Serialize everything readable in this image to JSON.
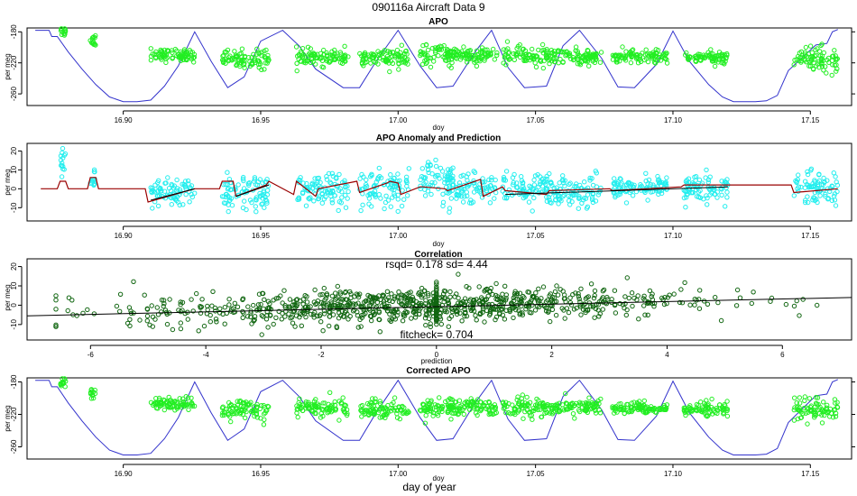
{
  "figure": {
    "title": "090116a   Aircraft Data 9",
    "bottom_label": "day of year"
  },
  "colors": {
    "apo_points": "#22ee22",
    "anomaly_points": "#22eeee",
    "corr_points": "#116611",
    "model_line": "#3333cc",
    "prediction_line": "#990000",
    "axis": "#000000"
  },
  "chart_data": [
    {
      "type": "scatter",
      "title": "APO",
      "xlabel": "doy",
      "ylabel": "per meg",
      "xlim": [
        16.865,
        17.165
      ],
      "ylim": [
        -275,
        -175
      ],
      "xticks": [
        16.9,
        16.95,
        17.0,
        17.05,
        17.1,
        17.15
      ],
      "xtick_labels": [
        "16.90",
        "16.95",
        "17.00",
        "17.05",
        "17.10",
        "17.15"
      ],
      "yticks": [
        -180,
        -220,
        -260
      ],
      "ytick_labels": [
        "-180",
        "-220",
        "-260"
      ],
      "segments": [
        {
          "x0": 16.877,
          "x1": 16.879,
          "mean": -178,
          "sd": 4
        },
        {
          "x0": 16.888,
          "x1": 16.89,
          "mean": -190,
          "sd": 4
        },
        {
          "x0": 16.91,
          "x1": 16.926,
          "mean": -210,
          "sd": 4
        },
        {
          "x0": 16.936,
          "x1": 16.953,
          "mean": -215,
          "sd": 6
        },
        {
          "x0": 16.963,
          "x1": 16.982,
          "mean": -213,
          "sd": 5
        },
        {
          "x0": 16.986,
          "x1": 17.004,
          "mean": -214,
          "sd": 6
        },
        {
          "x0": 17.008,
          "x1": 17.02,
          "mean": -211,
          "sd": 6
        },
        {
          "x0": 17.018,
          "x1": 17.036,
          "mean": -210,
          "sd": 5
        },
        {
          "x0": 17.038,
          "x1": 17.055,
          "mean": -211,
          "sd": 6
        },
        {
          "x0": 17.055,
          "x1": 17.074,
          "mean": -212,
          "sd": 5
        },
        {
          "x0": 17.078,
          "x1": 17.098,
          "mean": -212,
          "sd": 4
        },
        {
          "x0": 17.104,
          "x1": 17.12,
          "mean": -213,
          "sd": 4
        },
        {
          "x0": 17.144,
          "x1": 17.16,
          "mean": -215,
          "sd": 8
        }
      ],
      "model_line": {
        "name": "model",
        "x": [
          16.868,
          16.873,
          16.874,
          16.876,
          16.88,
          16.885,
          16.89,
          16.895,
          16.9,
          16.905,
          16.91,
          16.915,
          16.92,
          16.926,
          16.932,
          16.938,
          16.944,
          16.95,
          16.958,
          16.964,
          16.97,
          16.98,
          16.986,
          16.992,
          17.0,
          17.008,
          17.014,
          17.02,
          17.028,
          17.034,
          17.04,
          17.046,
          17.054,
          17.06,
          17.066,
          17.074,
          17.08,
          17.086,
          17.094,
          17.1,
          17.106,
          17.113,
          17.118,
          17.122,
          17.13,
          17.134,
          17.138,
          17.142,
          17.148,
          17.152,
          17.156,
          17.158,
          17.16
        ],
        "y": [
          -178,
          -178,
          -186,
          -186,
          -206,
          -228,
          -248,
          -264,
          -270,
          -270,
          -268,
          -250,
          -224,
          -180,
          -218,
          -252,
          -238,
          -192,
          -178,
          -198,
          -228,
          -252,
          -252,
          -218,
          -178,
          -224,
          -252,
          -250,
          -206,
          -178,
          -226,
          -252,
          -250,
          -198,
          -178,
          -214,
          -251,
          -252,
          -222,
          -179,
          -218,
          -248,
          -264,
          -270,
          -270,
          -269,
          -262,
          -230,
          -210,
          -197,
          -195,
          -180,
          -177
        ]
      }
    },
    {
      "type": "scatter",
      "title": "APO Anomaly and Prediction",
      "xlabel": "doy",
      "ylabel": "per meg",
      "xlim": [
        16.865,
        17.165
      ],
      "ylim": [
        -17,
        24
      ],
      "xticks": [
        16.9,
        16.95,
        17.0,
        17.05,
        17.1,
        17.15
      ],
      "xtick_labels": [
        "16.90",
        "16.95",
        "17.00",
        "17.05",
        "17.10",
        "17.15"
      ],
      "yticks": [
        20,
        10,
        0,
        -10
      ],
      "ytick_labels": [
        "20",
        "10",
        "0",
        "-10"
      ],
      "segments": [
        {
          "x0": 16.877,
          "x1": 16.879,
          "mean": 14,
          "sd": 4
        },
        {
          "x0": 16.888,
          "x1": 16.89,
          "mean": 6,
          "sd": 3
        },
        {
          "x0": 16.91,
          "x1": 16.926,
          "mean": -3,
          "sd": 4
        },
        {
          "x0": 16.936,
          "x1": 16.953,
          "mean": -2,
          "sd": 5
        },
        {
          "x0": 16.963,
          "x1": 16.982,
          "mean": -1,
          "sd": 4
        },
        {
          "x0": 16.986,
          "x1": 17.004,
          "mean": 0,
          "sd": 5
        },
        {
          "x0": 17.008,
          "x1": 17.02,
          "mean": 4,
          "sd": 5
        },
        {
          "x0": 17.018,
          "x1": 17.036,
          "mean": 1,
          "sd": 4
        },
        {
          "x0": 17.038,
          "x1": 17.055,
          "mean": 0,
          "sd": 4
        },
        {
          "x0": 17.055,
          "x1": 17.074,
          "mean": -1,
          "sd": 4
        },
        {
          "x0": 17.078,
          "x1": 17.098,
          "mean": 0,
          "sd": 3
        },
        {
          "x0": 17.104,
          "x1": 17.12,
          "mean": 0,
          "sd": 4
        },
        {
          "x0": 17.144,
          "x1": 17.16,
          "mean": 0,
          "sd": 5
        }
      ],
      "prediction_line": {
        "name": "prediction",
        "x": [
          16.87,
          16.876,
          16.877,
          16.879,
          16.88,
          16.887,
          16.888,
          16.89,
          16.891,
          16.908,
          16.909,
          16.926,
          16.927,
          16.935,
          16.936,
          16.94,
          16.941,
          16.952,
          16.953,
          16.962,
          16.963,
          16.97,
          16.971,
          16.985,
          16.986,
          16.996,
          16.997,
          17.0,
          17.001,
          17.008,
          17.009,
          17.017,
          17.018,
          17.03,
          17.031,
          17.038,
          17.039,
          17.054,
          17.055,
          17.077,
          17.078,
          17.103,
          17.104,
          17.12,
          17.121,
          17.143,
          17.144,
          17.16
        ],
        "y": [
          0,
          0,
          4,
          4,
          0,
          0,
          6,
          6,
          0,
          0,
          -7,
          0,
          0,
          0,
          4,
          4,
          -4,
          2,
          4,
          -3,
          4,
          -4,
          0,
          4,
          -2,
          3,
          4,
          3,
          -3,
          1,
          1,
          0,
          -1,
          5,
          -4,
          1,
          -1,
          -3,
          -1,
          0,
          -1,
          1,
          2,
          2,
          2,
          2,
          -2,
          0
        ]
      }
    },
    {
      "type": "scatter",
      "title": "Correlation",
      "annotation": "rsqd= 0.178 sd= 4.44",
      "annotation2": "fitcheck= 0.704",
      "xlabel": "prediction",
      "ylabel": "per meg",
      "xlim": [
        -7.1,
        7.2
      ],
      "ylim": [
        -18,
        24
      ],
      "xticks": [
        -6,
        -4,
        -2,
        0,
        2,
        4,
        6
      ],
      "xtick_labels": [
        "-6",
        "-4",
        "-2",
        "0",
        "2",
        "4",
        "6"
      ],
      "yticks": [
        20,
        10,
        0,
        -10
      ],
      "ytick_labels": [
        "20",
        "10",
        "0",
        "-10"
      ],
      "fit_line": {
        "x": [
          -7.1,
          7.2
        ],
        "y": [
          -5.5,
          4.0
        ]
      },
      "point_slope": 0.66,
      "point_sd": 4.4
    },
    {
      "type": "scatter",
      "title": "Corrected APO",
      "xlabel": "doy",
      "ylabel": "per meg",
      "xlim": [
        16.865,
        17.165
      ],
      "ylim": [
        -275,
        -175
      ],
      "xticks": [
        16.9,
        16.95,
        17.0,
        17.05,
        17.1,
        17.15
      ],
      "xtick_labels": [
        "16.90",
        "16.95",
        "17.00",
        "17.05",
        "17.10",
        "17.15"
      ],
      "yticks": [
        -180,
        -220,
        -260
      ],
      "ytick_labels": [
        "-180",
        "-220",
        "-260"
      ],
      "segments": [
        {
          "x0": 16.877,
          "x1": 16.879,
          "mean": -180,
          "sd": 4
        },
        {
          "x0": 16.888,
          "x1": 16.89,
          "mean": -196,
          "sd": 4
        },
        {
          "x0": 16.91,
          "x1": 16.926,
          "mean": -207,
          "sd": 4
        },
        {
          "x0": 16.936,
          "x1": 16.953,
          "mean": -214,
          "sd": 6
        },
        {
          "x0": 16.963,
          "x1": 16.982,
          "mean": -212,
          "sd": 5
        },
        {
          "x0": 16.986,
          "x1": 17.004,
          "mean": -215,
          "sd": 6
        },
        {
          "x0": 17.008,
          "x1": 17.02,
          "mean": -212,
          "sd": 6
        },
        {
          "x0": 17.018,
          "x1": 17.036,
          "mean": -211,
          "sd": 5
        },
        {
          "x0": 17.038,
          "x1": 17.055,
          "mean": -211,
          "sd": 6
        },
        {
          "x0": 17.055,
          "x1": 17.074,
          "mean": -211,
          "sd": 5
        },
        {
          "x0": 17.078,
          "x1": 17.098,
          "mean": -213,
          "sd": 4
        },
        {
          "x0": 17.104,
          "x1": 17.12,
          "mean": -213,
          "sd": 4
        },
        {
          "x0": 17.144,
          "x1": 17.16,
          "mean": -215,
          "sd": 8
        }
      ],
      "model_line": {
        "name": "model",
        "x": [
          16.868,
          16.873,
          16.874,
          16.876,
          16.88,
          16.885,
          16.89,
          16.895,
          16.9,
          16.905,
          16.91,
          16.915,
          16.92,
          16.926,
          16.932,
          16.938,
          16.944,
          16.95,
          16.958,
          16.964,
          16.97,
          16.98,
          16.986,
          16.992,
          17.0,
          17.008,
          17.014,
          17.02,
          17.028,
          17.034,
          17.04,
          17.046,
          17.054,
          17.06,
          17.066,
          17.074,
          17.08,
          17.086,
          17.094,
          17.1,
          17.106,
          17.113,
          17.118,
          17.122,
          17.13,
          17.134,
          17.138,
          17.142,
          17.148,
          17.152,
          17.156,
          17.158,
          17.16
        ],
        "y": [
          -178,
          -178,
          -186,
          -186,
          -206,
          -228,
          -248,
          -264,
          -270,
          -270,
          -268,
          -250,
          -224,
          -180,
          -218,
          -252,
          -238,
          -192,
          -178,
          -198,
          -228,
          -252,
          -252,
          -218,
          -178,
          -224,
          -252,
          -250,
          -206,
          -178,
          -226,
          -252,
          -250,
          -198,
          -178,
          -214,
          -251,
          -252,
          -222,
          -179,
          -218,
          -248,
          -264,
          -270,
          -270,
          -269,
          -262,
          -230,
          -210,
          -197,
          -195,
          -180,
          -177
        ]
      }
    }
  ]
}
